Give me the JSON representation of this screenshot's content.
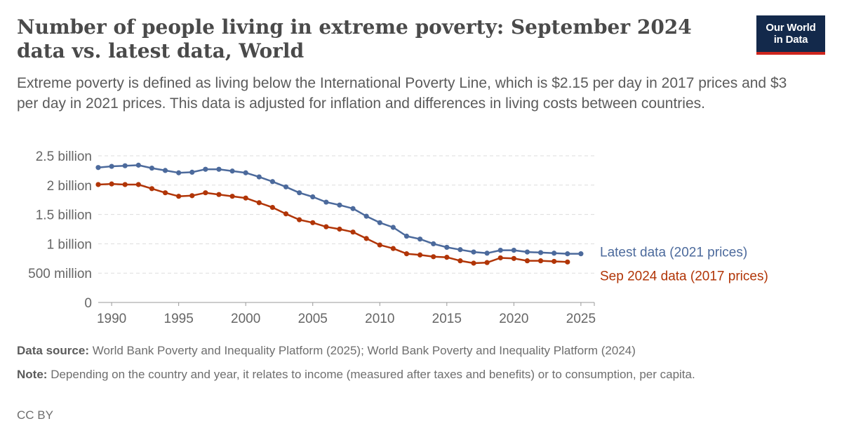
{
  "header": {
    "title": "Number of people living in extreme poverty: September 2024 data vs. latest data, World",
    "subtitle": "Extreme poverty is defined as living below the International Poverty Line, which is $2.15 per day in 2017 prices and $3 per day in 2021 prices. This data is adjusted for inflation and differences in living costs between countries."
  },
  "logo": {
    "line1": "Our World",
    "line2": "in Data",
    "bg_color": "#13294b",
    "accent_color": "#ce261e"
  },
  "footer": {
    "source_label": "Data source:",
    "source_text": "World Bank Poverty and Inequality Platform (2025); World Bank Poverty and Inequality Platform (2024)",
    "note_label": "Note:",
    "note_text": "Depending on the country and year, it relates to income (measured after taxes and benefits) or to consumption, per capita.",
    "license": "CC BY"
  },
  "chart_data": {
    "type": "line",
    "title": "Number of people living in extreme poverty: September 2024 data vs. latest data, World",
    "xlabel": "",
    "ylabel": "",
    "xlim": [
      1989,
      2026
    ],
    "ylim": [
      0,
      2500000000
    ],
    "grid": true,
    "legend_placement": "right end of lines",
    "x_ticks": [
      1990,
      1995,
      2000,
      2005,
      2010,
      2015,
      2020,
      2025
    ],
    "y_ticks": [
      {
        "value": 0,
        "label": "0"
      },
      {
        "value": 500000000,
        "label": "500 million"
      },
      {
        "value": 1000000000,
        "label": "1 billion"
      },
      {
        "value": 1500000000,
        "label": "1.5 billion"
      },
      {
        "value": 2000000000,
        "label": "2 billion"
      },
      {
        "value": 2500000000,
        "label": "2.5 billion"
      }
    ],
    "series": [
      {
        "name": "Latest data (2021 prices)",
        "color": "#4c6a9c",
        "x": [
          1989,
          1990,
          1991,
          1992,
          1993,
          1994,
          1995,
          1996,
          1997,
          1998,
          1999,
          2000,
          2001,
          2002,
          2003,
          2004,
          2005,
          2006,
          2007,
          2008,
          2009,
          2010,
          2011,
          2012,
          2013,
          2014,
          2015,
          2016,
          2017,
          2018,
          2019,
          2020,
          2021,
          2022,
          2023,
          2024,
          2025
        ],
        "y": [
          2300000000,
          2320000000,
          2330000000,
          2340000000,
          2290000000,
          2250000000,
          2210000000,
          2220000000,
          2270000000,
          2270000000,
          2240000000,
          2210000000,
          2140000000,
          2060000000,
          1970000000,
          1870000000,
          1800000000,
          1710000000,
          1660000000,
          1600000000,
          1470000000,
          1360000000,
          1280000000,
          1130000000,
          1080000000,
          1000000000,
          940000000,
          900000000,
          860000000,
          840000000,
          890000000,
          890000000,
          860000000,
          850000000,
          840000000,
          830000000,
          830000000
        ]
      },
      {
        "name": "Sep 2024 data (2017 prices)",
        "color": "#b13507",
        "x": [
          1989,
          1990,
          1991,
          1992,
          1993,
          1994,
          1995,
          1996,
          1997,
          1998,
          1999,
          2000,
          2001,
          2002,
          2003,
          2004,
          2005,
          2006,
          2007,
          2008,
          2009,
          2010,
          2011,
          2012,
          2013,
          2014,
          2015,
          2016,
          2017,
          2018,
          2019,
          2020,
          2021,
          2022,
          2023,
          2024
        ],
        "y": [
          2010000000,
          2020000000,
          2010000000,
          2010000000,
          1940000000,
          1870000000,
          1810000000,
          1820000000,
          1870000000,
          1840000000,
          1810000000,
          1780000000,
          1700000000,
          1620000000,
          1510000000,
          1410000000,
          1360000000,
          1290000000,
          1250000000,
          1200000000,
          1090000000,
          980000000,
          920000000,
          830000000,
          810000000,
          780000000,
          770000000,
          710000000,
          670000000,
          680000000,
          760000000,
          750000000,
          710000000,
          710000000,
          700000000,
          690000000
        ]
      }
    ]
  }
}
